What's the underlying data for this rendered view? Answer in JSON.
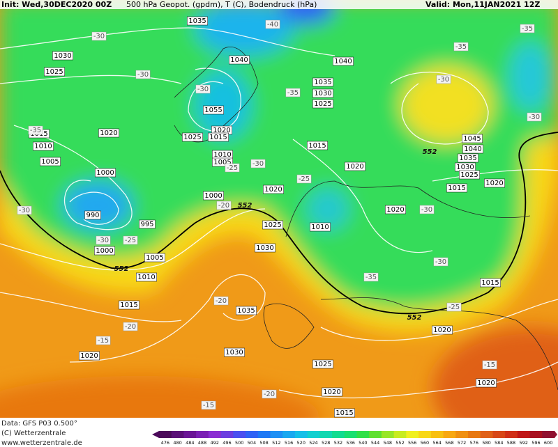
{
  "header": {
    "init": "Init: Wed,30DEC2020 00Z",
    "description": "500 hPa Geopot. (gpdm), T (C), Bodendruck (hPa)",
    "valid": "Valid: Mon,11JAN2021 12Z"
  },
  "footer": {
    "data": "Data: GFS P03 0.500°",
    "copyright": "(C) Wetterzentrale",
    "url": "www.wetterzentrale.de"
  },
  "isobar_labels": [
    1035,
    1030,
    1025,
    1040,
    1040,
    1035,
    1030,
    1025,
    1055,
    1020,
    1015,
    1020,
    1025,
    1015,
    1010,
    1005,
    1010,
    1005,
    1000,
    1015,
    1020,
    1020,
    1000,
    990,
    995,
    1025,
    1010,
    1030,
    1000,
    1005,
    1010,
    1015,
    1035,
    1020,
    1030,
    1025,
    1020,
    1015,
    1045,
    1040,
    1035,
    1030,
    1025,
    1020,
    1015,
    1020,
    1015,
    1020,
    1020
  ],
  "temperature_labels": [
    -30,
    -40,
    -35,
    -35,
    -30,
    -30,
    -30,
    -35,
    -35,
    -30,
    -30,
    -25,
    -25,
    -20,
    -30,
    -30,
    -30,
    -25,
    -30,
    -35,
    -25,
    -20,
    -20,
    -15,
    -15,
    -20,
    -15
  ],
  "line_552_labels": [
    552,
    552,
    552,
    552
  ],
  "colorbar": {
    "ticks": [
      476,
      480,
      484,
      488,
      492,
      496,
      500,
      504,
      508,
      512,
      516,
      520,
      524,
      528,
      532,
      536,
      540,
      544,
      548,
      552,
      556,
      560,
      564,
      568,
      572,
      576,
      580,
      584,
      588,
      592,
      596,
      600
    ],
    "colors": [
      "#4b0a5a",
      "#5a0f78",
      "#6a1496",
      "#7a1fb4",
      "#8a2dd2",
      "#6b3de0",
      "#4a4ff0",
      "#2e62f5",
      "#1e78f5",
      "#1e90f5",
      "#1aa8f0",
      "#16bfe8",
      "#12d0d0",
      "#10d8b0",
      "#10dc90",
      "#18e070",
      "#30e048",
      "#60e030",
      "#98e628",
      "#c8ec20",
      "#f0f020",
      "#f8d818",
      "#f8c010",
      "#f8a810",
      "#f09010",
      "#e87810",
      "#e06018",
      "#d84818",
      "#d03018",
      "#c01818",
      "#a81020",
      "#901030"
    ]
  }
}
